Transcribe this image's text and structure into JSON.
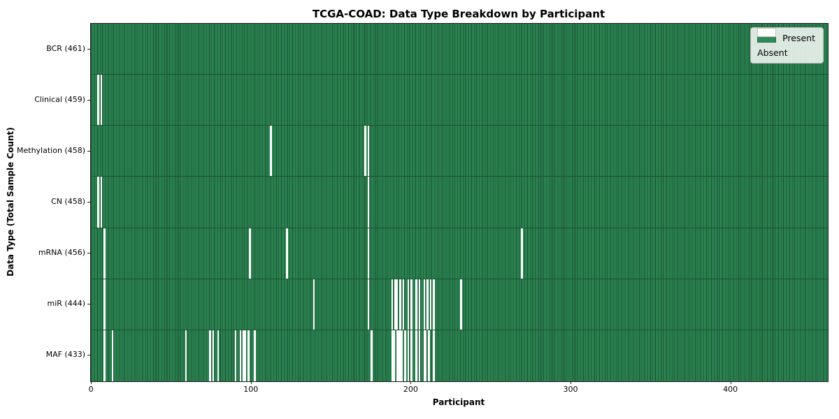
{
  "title": "TCGA-COAD: Data Type Breakdown by Participant",
  "xlabel": "Participant",
  "ylabel": "Data Type (Total Sample Count)",
  "colors": {
    "present": "#2e8b57",
    "cell_edge": "#174a2e",
    "absent": "#ffffff",
    "legend_background": "#fafcfa",
    "legend_border": "#b7bdb7"
  },
  "chart_data": {
    "type": "heatmap",
    "title": "TCGA-COAD: Data Type Breakdown by Participant",
    "xlabel": "Participant",
    "ylabel": "Data Type (Total Sample Count)",
    "n_participants": 461,
    "xlim": [
      0,
      461
    ],
    "x_ticks": [
      0,
      100,
      200,
      300,
      400
    ],
    "grid": false,
    "legend_position": "upper right",
    "legend_entries": [
      {
        "label": "Present",
        "color": "#2e8b57"
      },
      {
        "label": "Absent",
        "color": "#ffffff"
      }
    ],
    "cell_values": {
      "present": 1,
      "absent": 0
    },
    "rows": [
      {
        "data_type": "BCR",
        "label": "BCR (461)",
        "present_count": 461,
        "absent_participants": []
      },
      {
        "data_type": "Clinical",
        "label": "Clinical (459)",
        "present_count": 459,
        "absent_participants": [
          4,
          6
        ]
      },
      {
        "data_type": "Methylation",
        "label": "Methylation (458)",
        "present_count": 458,
        "absent_participants": [
          112,
          171,
          173
        ]
      },
      {
        "data_type": "CN",
        "label": "CN (458)",
        "present_count": 458,
        "absent_participants": [
          4,
          6,
          173
        ]
      },
      {
        "data_type": "mRNA",
        "label": "mRNA (456)",
        "present_count": 456,
        "absent_participants": [
          8,
          99,
          122,
          173,
          269
        ]
      },
      {
        "data_type": "miR",
        "label": "miR (444)",
        "present_count": 444,
        "absent_participants": [
          8,
          139,
          173,
          188,
          190,
          191,
          193,
          195,
          198,
          200,
          203,
          205,
          208,
          210,
          212,
          214,
          231
        ]
      },
      {
        "data_type": "MAF",
        "label": "MAF (433)",
        "present_count": 433,
        "absent_participants": [
          8,
          13,
          59,
          74,
          76,
          79,
          90,
          93,
          95,
          96,
          98,
          102,
          175,
          188,
          189,
          191,
          192,
          193,
          194,
          196,
          198,
          200,
          203,
          205,
          208,
          209,
          211,
          214
        ]
      }
    ]
  }
}
